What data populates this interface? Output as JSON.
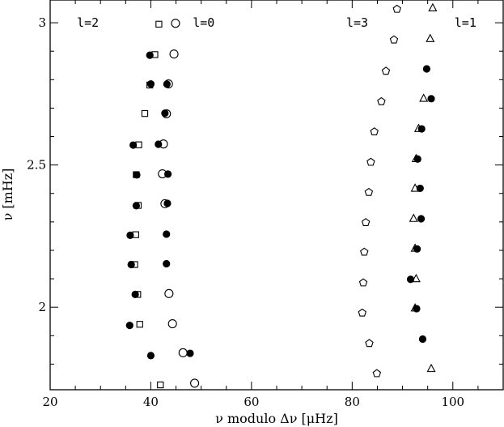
{
  "chart_data": {
    "type": "scatter",
    "title": "",
    "xlabel": "ν modulo Δν [μHz]",
    "ylabel": "ν [mHz]",
    "xlim": [
      20,
      110
    ],
    "ylim": [
      1.71,
      3.08
    ],
    "x_ticks": [
      "20",
      "40",
      "60",
      "80",
      "100"
    ],
    "y_ticks": [
      "2",
      "2.5",
      "3"
    ],
    "grid": false,
    "annotations": [
      {
        "text": "l=2",
        "x": 27.5,
        "y": 3.0
      },
      {
        "text": "l=0",
        "x": 50.5,
        "y": 3.0
      },
      {
        "text": "l=3",
        "x": 81.0,
        "y": 3.0
      },
      {
        "text": "l=1",
        "x": 102.5,
        "y": 3.0
      }
    ],
    "series": [
      {
        "marker": "filled-circle",
        "points": [
          [
            39.8,
            2.886
          ],
          [
            40.0,
            2.785
          ],
          [
            36.5,
            2.57
          ],
          [
            37.2,
            2.465
          ],
          [
            37.1,
            2.357
          ],
          [
            35.9,
            2.253
          ],
          [
            36.1,
            2.15
          ],
          [
            36.9,
            2.045
          ],
          [
            35.8,
            1.936
          ],
          [
            40.0,
            1.83
          ],
          [
            43.2,
            2.784
          ],
          [
            42.8,
            2.682
          ],
          [
            41.5,
            2.573
          ],
          [
            43.4,
            2.468
          ],
          [
            43.3,
            2.365
          ],
          [
            43.1,
            2.257
          ],
          [
            43.1,
            2.153
          ],
          [
            47.8,
            1.838
          ],
          [
            94.8,
            2.838
          ],
          [
            95.7,
            2.733
          ],
          [
            93.8,
            2.627
          ],
          [
            93.0,
            2.521
          ],
          [
            93.5,
            2.418
          ],
          [
            93.7,
            2.311
          ],
          [
            92.9,
            2.205
          ],
          [
            91.6,
            2.098
          ],
          [
            92.8,
            1.995
          ],
          [
            94.0,
            1.888
          ]
        ]
      },
      {
        "marker": "open-circle",
        "points": [
          [
            44.9,
            2.998
          ],
          [
            44.6,
            2.89
          ],
          [
            43.5,
            2.785
          ],
          [
            43.1,
            2.68
          ],
          [
            42.5,
            2.574
          ],
          [
            42.3,
            2.469
          ],
          [
            42.8,
            2.364
          ],
          [
            43.6,
            2.048
          ],
          [
            44.3,
            1.942
          ],
          [
            46.4,
            1.84
          ],
          [
            48.7,
            1.733
          ]
        ]
      },
      {
        "marker": "open-square",
        "points": [
          [
            41.6,
            2.995
          ],
          [
            40.8,
            2.888
          ],
          [
            39.8,
            2.781
          ],
          [
            38.8,
            2.681
          ],
          [
            37.6,
            2.571
          ],
          [
            37.1,
            2.466
          ],
          [
            37.5,
            2.358
          ],
          [
            37.0,
            2.255
          ],
          [
            36.8,
            2.15
          ],
          [
            37.4,
            2.045
          ],
          [
            37.8,
            1.94
          ],
          [
            41.9,
            1.727
          ]
        ]
      },
      {
        "marker": "open-pentagon",
        "points": [
          [
            88.9,
            3.048
          ],
          [
            88.3,
            2.94
          ],
          [
            86.7,
            2.83
          ],
          [
            85.8,
            2.723
          ],
          [
            84.4,
            2.617
          ],
          [
            83.7,
            2.51
          ],
          [
            83.3,
            2.404
          ],
          [
            82.7,
            2.298
          ],
          [
            82.4,
            2.194
          ],
          [
            82.2,
            2.086
          ],
          [
            82.0,
            1.98
          ],
          [
            83.4,
            1.873
          ],
          [
            84.9,
            1.767
          ]
        ]
      },
      {
        "marker": "open-triangle",
        "points": [
          [
            96.0,
            3.052
          ],
          [
            95.5,
            2.944
          ],
          [
            94.2,
            2.734
          ],
          [
            93.2,
            2.628
          ],
          [
            92.7,
            2.522
          ],
          [
            92.5,
            2.418
          ],
          [
            92.2,
            2.312
          ],
          [
            92.5,
            2.207
          ],
          [
            92.7,
            2.1
          ],
          [
            92.5,
            1.997
          ],
          [
            95.7,
            1.784
          ]
        ]
      }
    ]
  }
}
